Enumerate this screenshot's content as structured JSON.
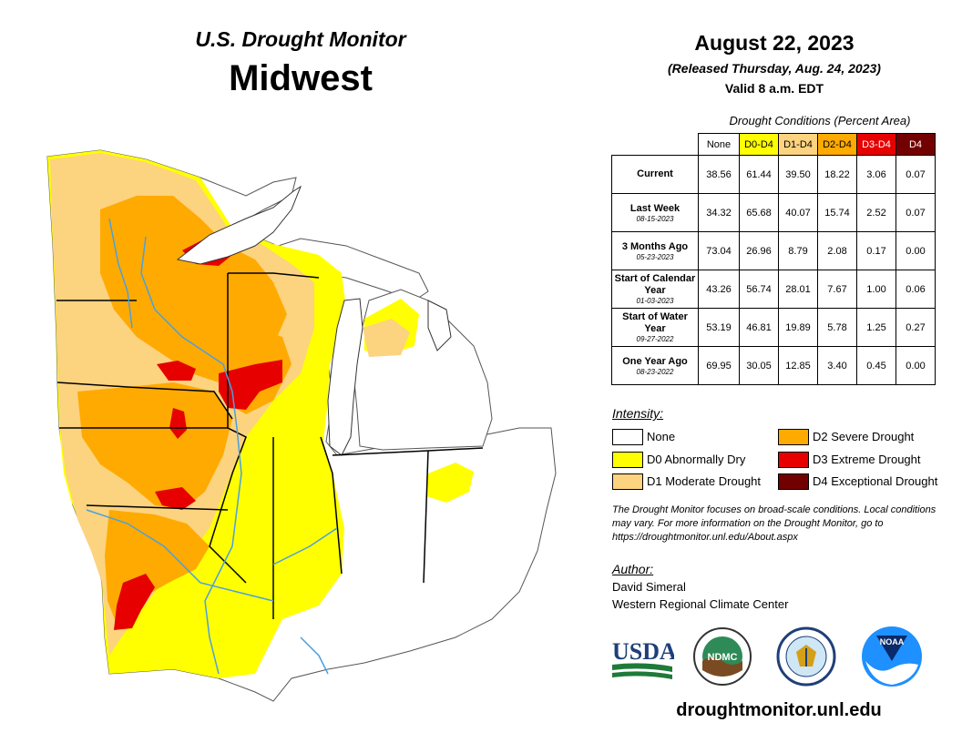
{
  "header": {
    "subtitle": "U.S. Drought Monitor",
    "title": "Midwest",
    "date": "August 22, 2023",
    "released": "(Released Thursday, Aug. 24, 2023)",
    "valid": "Valid 8 a.m. EDT"
  },
  "table": {
    "caption": "Drought Conditions (Percent Area)",
    "columns": [
      "None",
      "D0-D4",
      "D1-D4",
      "D2-D4",
      "D3-D4",
      "D4"
    ],
    "column_colors": [
      "#ffffff",
      "#ffff00",
      "#fcd37f",
      "#ffaa00",
      "#e60000",
      "#730000"
    ],
    "rows": [
      {
        "label": "Current",
        "date": "",
        "values": [
          "38.56",
          "61.44",
          "39.50",
          "18.22",
          "3.06",
          "0.07"
        ]
      },
      {
        "label": "Last Week",
        "date": "08-15-2023",
        "values": [
          "34.32",
          "65.68",
          "40.07",
          "15.74",
          "2.52",
          "0.07"
        ]
      },
      {
        "label": "3 Months Ago",
        "date": "05-23-2023",
        "values": [
          "73.04",
          "26.96",
          "8.79",
          "2.08",
          "0.17",
          "0.00"
        ]
      },
      {
        "label": "Start of Calendar Year",
        "date": "01-03-2023",
        "values": [
          "43.26",
          "56.74",
          "28.01",
          "7.67",
          "1.00",
          "0.06"
        ]
      },
      {
        "label": "Start of Water Year",
        "date": "09-27-2022",
        "values": [
          "53.19",
          "46.81",
          "19.89",
          "5.78",
          "1.25",
          "0.27"
        ]
      },
      {
        "label": "One Year Ago",
        "date": "08-23-2022",
        "values": [
          "69.95",
          "30.05",
          "12.85",
          "3.40",
          "0.45",
          "0.00"
        ]
      }
    ]
  },
  "legend": {
    "title": "Intensity:",
    "items": [
      {
        "label": "None",
        "color": "#ffffff"
      },
      {
        "label": "D0 Abnormally Dry",
        "color": "#ffff00"
      },
      {
        "label": "D1 Moderate Drought",
        "color": "#fcd37f"
      },
      {
        "label": "D2 Severe Drought",
        "color": "#ffaa00"
      },
      {
        "label": "D3 Extreme Drought",
        "color": "#e60000"
      },
      {
        "label": "D4 Exceptional Drought",
        "color": "#730000"
      }
    ]
  },
  "note": "The Drought Monitor focuses on broad-scale conditions. Local conditions may vary. For more information on the Drought Monitor, go to https://droughtmonitor.unl.edu/About.aspx",
  "author": {
    "title": "Author:",
    "name": "David Simeral",
    "org": "Western Regional Climate Center"
  },
  "logos": {
    "usda": "USDA",
    "ndmc": "NDMC",
    "noaa": "NOAA"
  },
  "website": "droughtmonitor.unl.edu"
}
